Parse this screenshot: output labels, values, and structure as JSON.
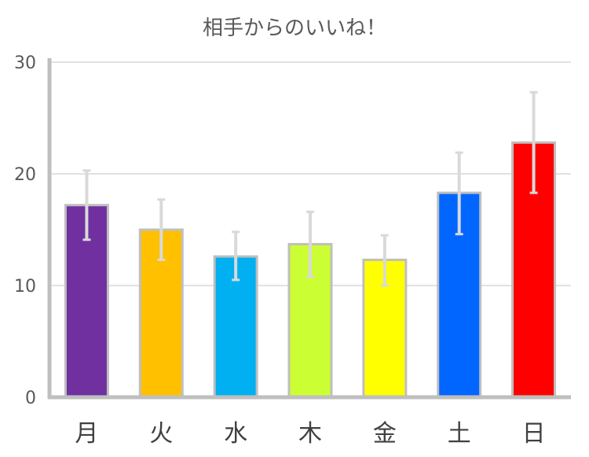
{
  "chart_data": {
    "type": "bar",
    "title": "相手からのいいね！",
    "xlabel": "",
    "ylabel": "",
    "categories": [
      "月",
      "火",
      "水",
      "木",
      "金",
      "土",
      "日"
    ],
    "values": [
      17.2,
      15.0,
      12.6,
      13.7,
      12.3,
      18.3,
      22.8
    ],
    "error_low": [
      14.1,
      12.3,
      10.5,
      10.8,
      10.0,
      14.6,
      18.3
    ],
    "error_high": [
      20.3,
      17.7,
      14.8,
      16.6,
      14.5,
      21.9,
      27.3
    ],
    "colors": [
      "#7030a0",
      "#ffc000",
      "#00b0f0",
      "#ccff33",
      "#ffff00",
      "#0066ff",
      "#ff0000"
    ],
    "bar_border_color": "#bfbfbf",
    "error_bar_color": "#d9d9d9",
    "ylim": [
      0,
      30
    ],
    "yticks": [
      0,
      10,
      20,
      30
    ],
    "grid": true,
    "legend": "none"
  }
}
